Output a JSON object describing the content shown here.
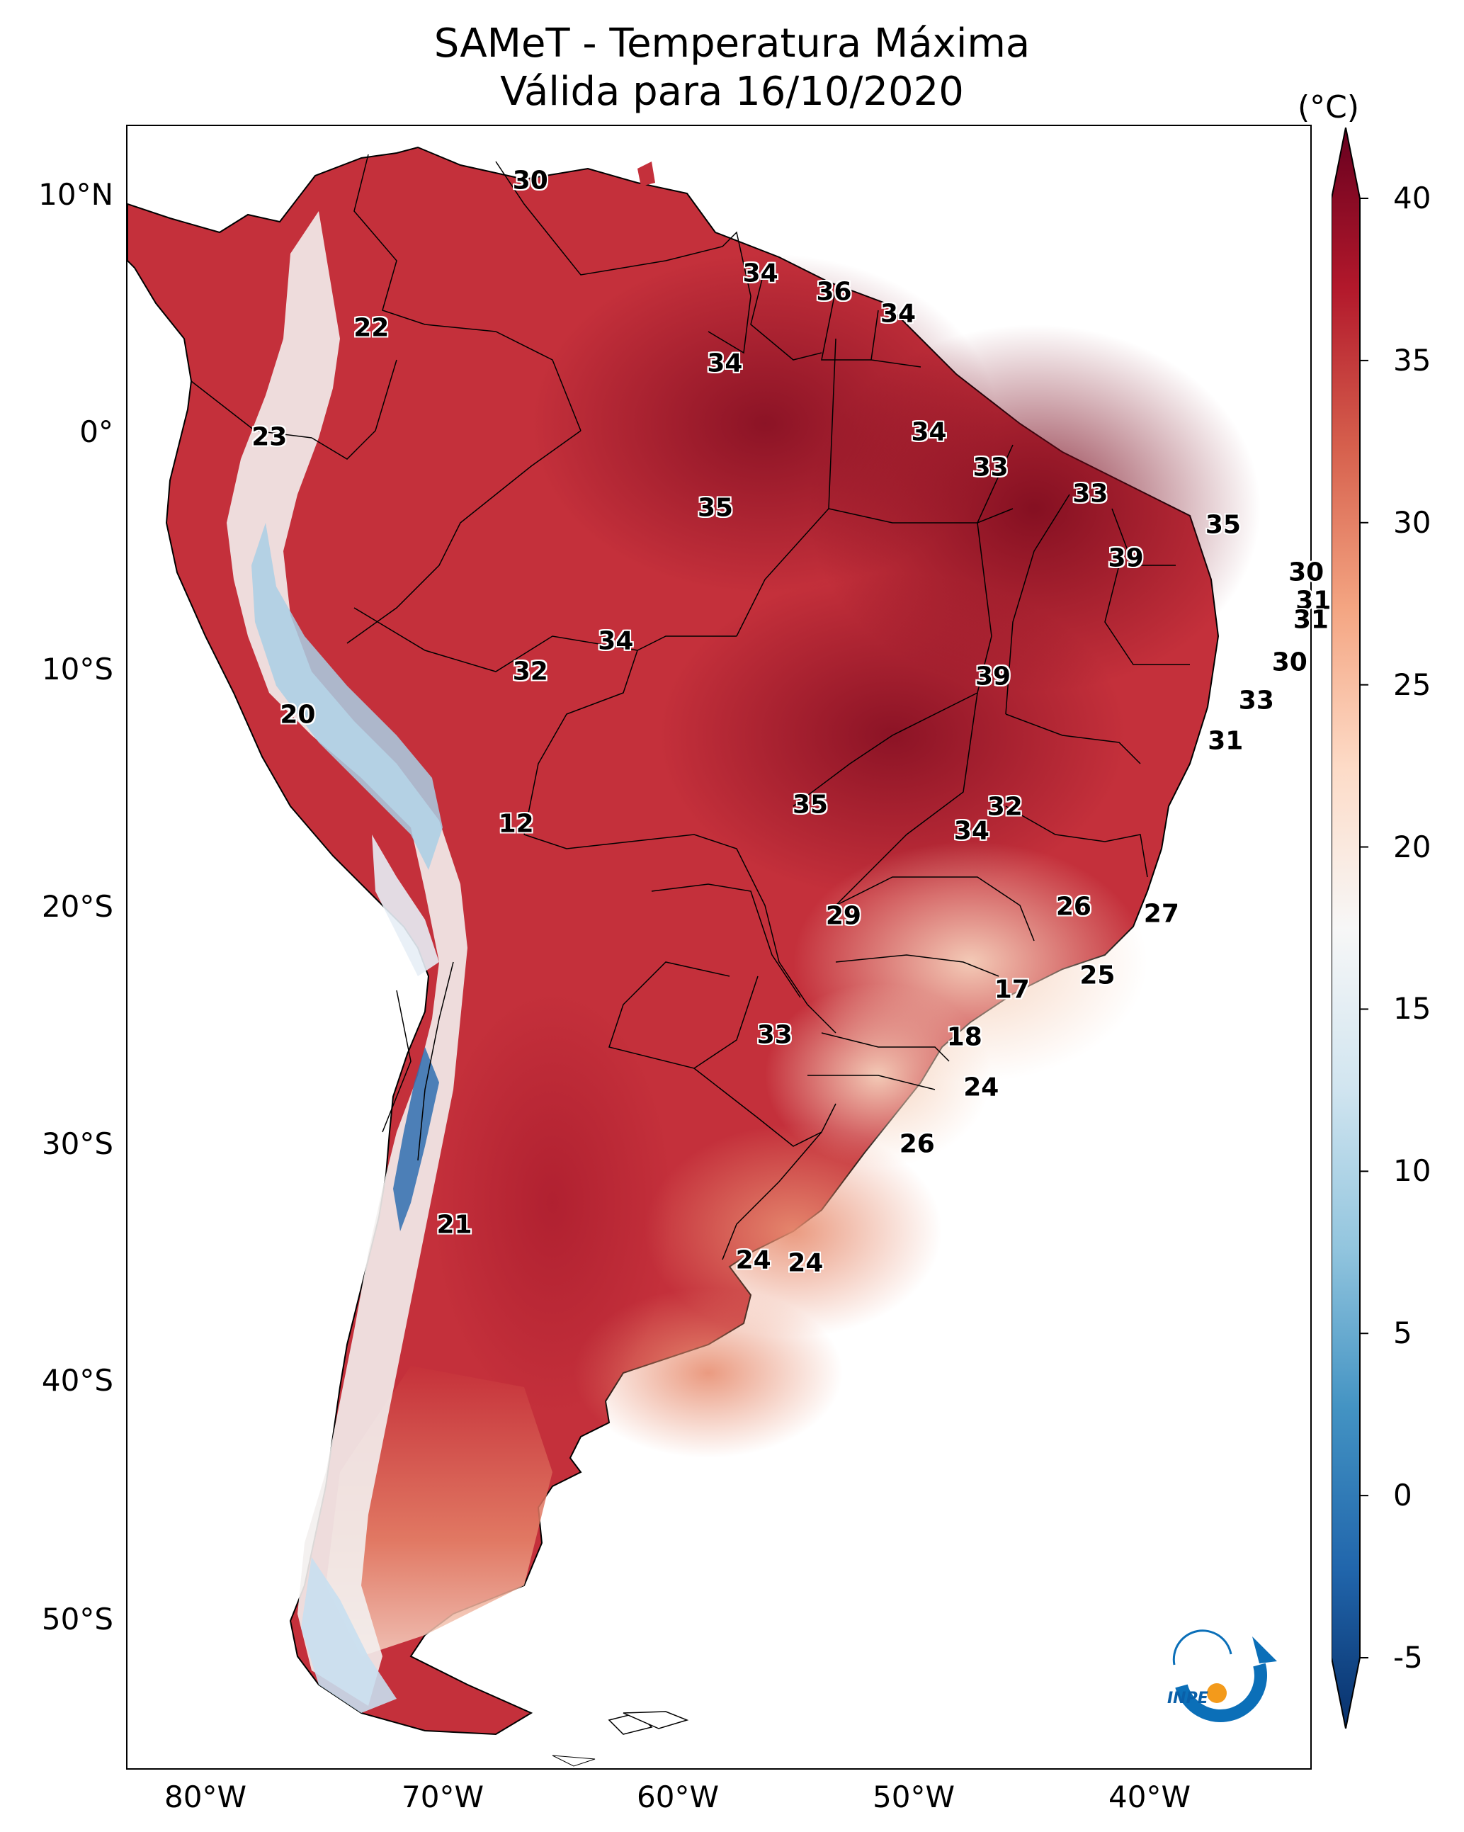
{
  "title": {
    "line1": "SAMeT - Temperatura Máxima",
    "line2": "Válida para 16/10/2020"
  },
  "axes": {
    "lat_labels": [
      {
        "value": 10,
        "text": "10°N"
      },
      {
        "value": 0,
        "text": "0°"
      },
      {
        "value": -10,
        "text": "10°S"
      },
      {
        "value": -20,
        "text": "20°S"
      },
      {
        "value": -30,
        "text": "30°S"
      },
      {
        "value": -40,
        "text": "40°S"
      },
      {
        "value": -50,
        "text": "50°S"
      }
    ],
    "lon_labels": [
      {
        "value": -80,
        "text": "80°W"
      },
      {
        "value": -70,
        "text": "70°W"
      },
      {
        "value": -60,
        "text": "60°W"
      },
      {
        "value": -50,
        "text": "50°W"
      },
      {
        "value": -40,
        "text": "40°W"
      }
    ]
  },
  "colorbar": {
    "unit": "(°C)",
    "min": -5,
    "max": 40,
    "ticks": [
      "40",
      "35",
      "30",
      "25",
      "20",
      "15",
      "10",
      "5",
      "0",
      "-5"
    ],
    "extend": "both",
    "colors_low_to_high": [
      "#08306b",
      "#2166ac",
      "#4393c3",
      "#92c5de",
      "#d1e5f0",
      "#f7f7f7",
      "#fddbc7",
      "#f4a582",
      "#d6604d",
      "#b2182b",
      "#67001f"
    ]
  },
  "contour_labels": [
    {
      "text": "30",
      "lat": 10.6,
      "lon": -67.5
    },
    {
      "text": "34",
      "lat": 6.7,
      "lon": -57.8
    },
    {
      "text": "36",
      "lat": 5.9,
      "lon": -54.7
    },
    {
      "text": "34",
      "lat": 5.0,
      "lon": -52.0
    },
    {
      "text": "22",
      "lat": 4.4,
      "lon": -74.2
    },
    {
      "text": "34",
      "lat": 2.9,
      "lon": -59.3
    },
    {
      "text": "34",
      "lat": 0.0,
      "lon": -50.7
    },
    {
      "text": "23",
      "lat": -0.2,
      "lon": -78.5
    },
    {
      "text": "33",
      "lat": -1.5,
      "lon": -48.1
    },
    {
      "text": "33",
      "lat": -2.6,
      "lon": -43.9
    },
    {
      "text": "35",
      "lat": -3.2,
      "lon": -59.7
    },
    {
      "text": "35",
      "lat": -3.9,
      "lon": -38.3
    },
    {
      "text": "39",
      "lat": -5.3,
      "lon": -42.4
    },
    {
      "text": "30",
      "lat": -5.9,
      "lon": -34.8
    },
    {
      "text": "31",
      "lat": -7.1,
      "lon": -34.5
    },
    {
      "text": "31",
      "lat": -7.9,
      "lon": -34.6
    },
    {
      "text": "34",
      "lat": -8.8,
      "lon": -63.9
    },
    {
      "text": "30",
      "lat": -9.7,
      "lon": -35.5
    },
    {
      "text": "32",
      "lat": -10.1,
      "lon": -67.5
    },
    {
      "text": "39",
      "lat": -10.3,
      "lon": -48.0
    },
    {
      "text": "33",
      "lat": -11.3,
      "lon": -36.9
    },
    {
      "text": "20",
      "lat": -11.9,
      "lon": -77.3
    },
    {
      "text": "31",
      "lat": -13.0,
      "lon": -38.2
    },
    {
      "text": "35",
      "lat": -15.7,
      "lon": -55.7
    },
    {
      "text": "32",
      "lat": -15.8,
      "lon": -47.5
    },
    {
      "text": "12",
      "lat": -16.5,
      "lon": -68.1
    },
    {
      "text": "34",
      "lat": -16.8,
      "lon": -48.9
    },
    {
      "text": "26",
      "lat": -20.0,
      "lon": -44.6
    },
    {
      "text": "27",
      "lat": -20.3,
      "lon": -40.9
    },
    {
      "text": "29",
      "lat": -20.4,
      "lon": -54.3
    },
    {
      "text": "25",
      "lat": -22.9,
      "lon": -43.6
    },
    {
      "text": "17",
      "lat": -23.5,
      "lon": -47.2
    },
    {
      "text": "33",
      "lat": -25.4,
      "lon": -57.2
    },
    {
      "text": "18",
      "lat": -25.5,
      "lon": -49.2
    },
    {
      "text": "24",
      "lat": -27.6,
      "lon": -48.5
    },
    {
      "text": "26",
      "lat": -30.0,
      "lon": -51.2
    },
    {
      "text": "21",
      "lat": -33.4,
      "lon": -70.7
    },
    {
      "text": "24",
      "lat": -34.9,
      "lon": -58.1
    },
    {
      "text": "24",
      "lat": -35.0,
      "lon": -55.9
    }
  ],
  "logo": {
    "text": "INPE"
  }
}
